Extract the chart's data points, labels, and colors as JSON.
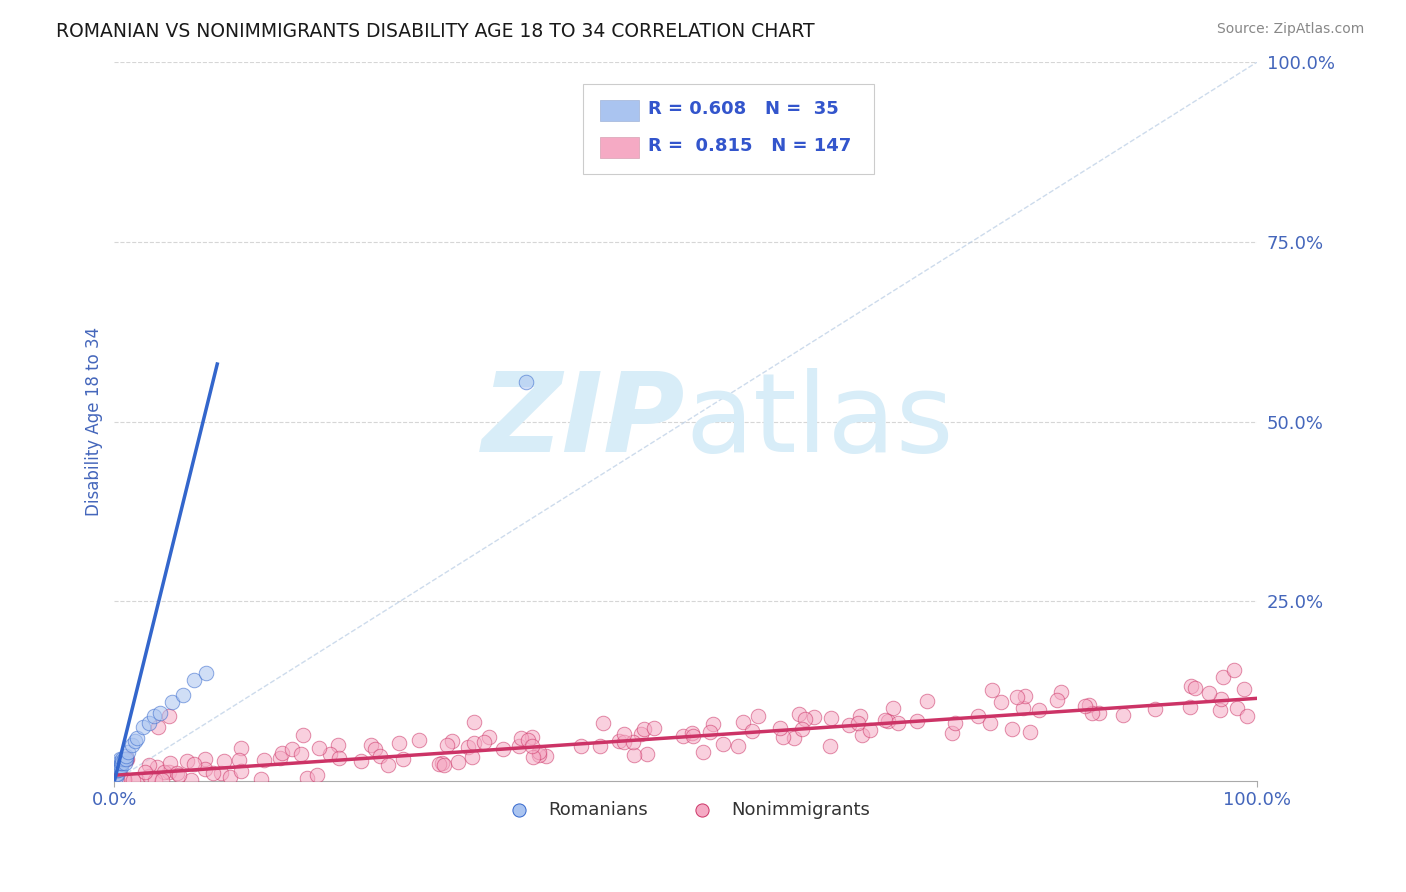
{
  "title": "ROMANIAN VS NONIMMIGRANTS DISABILITY AGE 18 TO 34 CORRELATION CHART",
  "source": "Source: ZipAtlas.com",
  "ylabel": "Disability Age 18 to 34",
  "xlim": [
    0,
    1.0
  ],
  "ylim": [
    0,
    1.0
  ],
  "ytick_labels": [
    "25.0%",
    "50.0%",
    "75.0%",
    "100.0%"
  ],
  "ytick_positions": [
    0.25,
    0.5,
    0.75,
    1.0
  ],
  "grid_color": "#cccccc",
  "blue_R": 0.608,
  "blue_N": 35,
  "pink_R": 0.815,
  "pink_N": 147,
  "blue_scatter_color": "#aac4f0",
  "blue_line_color": "#3366cc",
  "pink_scatter_color": "#f5aac4",
  "pink_line_color": "#cc3366",
  "legend_R_color": "#3355cc",
  "diagonal_color": "#b8cce4",
  "tick_label_color": "#4466bb",
  "axis_label_color": "#4466bb",
  "blue_scatter_x": [
    0.001,
    0.001,
    0.001,
    0.001,
    0.002,
    0.002,
    0.002,
    0.003,
    0.003,
    0.003,
    0.004,
    0.004,
    0.005,
    0.005,
    0.006,
    0.006,
    0.007,
    0.007,
    0.008,
    0.009,
    0.01,
    0.01,
    0.012,
    0.015,
    0.018,
    0.02,
    0.025,
    0.03,
    0.035,
    0.04,
    0.05,
    0.06,
    0.07,
    0.08,
    0.36
  ],
  "blue_scatter_y": [
    0.005,
    0.01,
    0.015,
    0.02,
    0.01,
    0.015,
    0.02,
    0.015,
    0.02,
    0.025,
    0.02,
    0.025,
    0.02,
    0.03,
    0.02,
    0.025,
    0.025,
    0.03,
    0.03,
    0.025,
    0.03,
    0.035,
    0.04,
    0.05,
    0.055,
    0.06,
    0.075,
    0.08,
    0.09,
    0.095,
    0.11,
    0.12,
    0.14,
    0.15,
    0.555
  ],
  "blue_line_x": [
    0.0,
    0.09
  ],
  "blue_line_y": [
    0.0,
    0.58
  ],
  "pink_line_x": [
    0.0,
    1.0
  ],
  "pink_line_y": [
    0.008,
    0.115
  ]
}
